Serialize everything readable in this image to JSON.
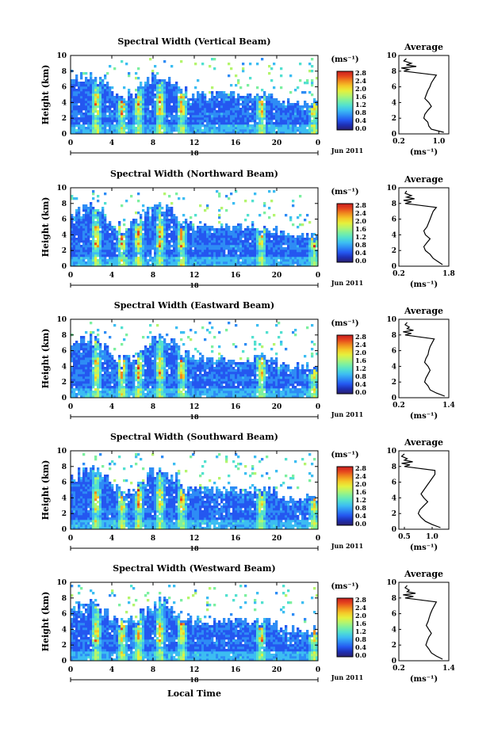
{
  "figure": {
    "xlabel": "Local Time",
    "date_label": "Jun 2011",
    "day_label": "18",
    "unit_label": "(ms⁻¹)",
    "colorbar_ticks": [
      "2.8",
      "2.4",
      "2.0",
      "1.6",
      "1.2",
      "0.8",
      "0.4",
      "0.0"
    ],
    "colorbar_colors": [
      "#2a1f6e",
      "#1e2fb4",
      "#2457f0",
      "#2e8cf5",
      "#3cbdf2",
      "#52e0d0",
      "#7cf0a0",
      "#b4f56e",
      "#e6f03c",
      "#f5c828",
      "#f08c1e",
      "#e6461e",
      "#c81e1e"
    ]
  },
  "chart_data": [
    {
      "type": "heatmap",
      "title": "Spectral Width (Vertical Beam)",
      "xlabel": "",
      "ylabel": "Height (km)",
      "xticks": [
        "0",
        "4",
        "8",
        "12",
        "16",
        "20",
        "0"
      ],
      "xlim": [
        0,
        24
      ],
      "ylim": [
        0,
        10
      ],
      "yticks": [
        "0",
        "2",
        "4",
        "6",
        "8",
        "10"
      ],
      "colorbar_range": [
        0.0,
        2.8
      ],
      "avg_profile": {
        "title": "Average",
        "xlabel": "(ms⁻¹)",
        "xticks": [
          "0.2",
          "1.0"
        ],
        "xlim": [
          0.2,
          1.2
        ],
        "y": [
          0.2,
          0.6,
          1.0,
          1.5,
          2.0,
          2.5,
          3.0,
          3.5,
          4.0,
          4.5,
          5.0,
          5.5,
          6.0,
          6.5,
          7.0,
          7.5,
          8.0,
          8.2,
          8.4,
          8.6,
          8.8,
          9.0,
          9.3,
          9.6
        ],
        "x": [
          1.1,
          0.85,
          0.8,
          0.78,
          0.7,
          0.72,
          0.78,
          0.85,
          0.8,
          0.72,
          0.75,
          0.78,
          0.82,
          0.85,
          0.9,
          0.95,
          0.3,
          0.4,
          0.25,
          0.55,
          0.35,
          0.45,
          0.3,
          0.35
        ]
      }
    },
    {
      "type": "heatmap",
      "title": "Spectral Width (Northward Beam)",
      "xlabel": "",
      "ylabel": "Height (km)",
      "xticks": [
        "0",
        "4",
        "8",
        "12",
        "16",
        "20",
        "0"
      ],
      "xlim": [
        0,
        24
      ],
      "ylim": [
        0,
        10
      ],
      "yticks": [
        "0",
        "2",
        "4",
        "6",
        "8",
        "10"
      ],
      "colorbar_range": [
        0.0,
        2.8
      ],
      "avg_profile": {
        "title": "Average",
        "xlabel": "(ms⁻¹)",
        "xticks": [
          "0.2",
          "1.8"
        ],
        "xlim": [
          0.2,
          1.8
        ],
        "y": [
          0.2,
          0.6,
          1.0,
          1.5,
          2.0,
          2.5,
          3.0,
          3.5,
          4.0,
          4.5,
          5.0,
          5.5,
          6.0,
          6.5,
          7.0,
          7.5,
          8.0,
          8.2,
          8.4,
          8.6,
          8.8,
          9.0,
          9.3,
          9.6
        ],
        "x": [
          1.6,
          1.45,
          1.3,
          1.2,
          1.05,
          1.0,
          1.1,
          1.2,
          1.05,
          1.0,
          1.1,
          1.15,
          1.2,
          1.25,
          1.3,
          1.4,
          0.4,
          0.6,
          0.35,
          0.7,
          0.45,
          0.6,
          0.4,
          0.45
        ]
      }
    },
    {
      "type": "heatmap",
      "title": "Spectral Width (Eastward Beam)",
      "xlabel": "",
      "ylabel": "Height (km)",
      "xticks": [
        "0",
        "4",
        "8",
        "12",
        "16",
        "20",
        "0"
      ],
      "xlim": [
        0,
        24
      ],
      "ylim": [
        0,
        10
      ],
      "yticks": [
        "0",
        "2",
        "4",
        "6",
        "8",
        "10"
      ],
      "colorbar_range": [
        0.0,
        2.8
      ],
      "avg_profile": {
        "title": "Average",
        "xlabel": "(ms⁻¹)",
        "xticks": [
          "0.2",
          "1.4"
        ],
        "xlim": [
          0.2,
          1.4
        ],
        "y": [
          0.2,
          0.6,
          1.0,
          1.5,
          2.0,
          2.5,
          3.0,
          3.5,
          4.0,
          4.5,
          5.0,
          5.5,
          6.0,
          6.5,
          7.0,
          7.5,
          8.0,
          8.2,
          8.4,
          8.6,
          8.8,
          9.0,
          9.3,
          9.6
        ],
        "x": [
          1.3,
          1.1,
          0.95,
          0.9,
          0.82,
          0.85,
          0.9,
          0.95,
          0.9,
          0.82,
          0.85,
          0.9,
          0.92,
          0.95,
          1.0,
          1.05,
          0.35,
          0.5,
          0.3,
          0.55,
          0.4,
          0.45,
          0.35,
          0.4
        ]
      }
    },
    {
      "type": "heatmap",
      "title": "Spectral Width (Southward Beam)",
      "xlabel": "",
      "ylabel": "Height (km)",
      "xticks": [
        "0",
        "4",
        "8",
        "12",
        "16",
        "20",
        "0"
      ],
      "xlim": [
        0,
        24
      ],
      "ylim": [
        0,
        10
      ],
      "yticks": [
        "0",
        "2",
        "4",
        "6",
        "8",
        "10"
      ],
      "colorbar_range": [
        0.0,
        2.8
      ],
      "avg_profile": {
        "title": "Average",
        "xlabel": "(ms⁻¹)",
        "xticks": [
          "0.5",
          "1.0"
        ],
        "xlim": [
          0.4,
          1.3
        ],
        "y": [
          0.2,
          0.6,
          1.0,
          1.5,
          2.0,
          2.5,
          3.0,
          3.5,
          4.0,
          4.5,
          5.0,
          5.5,
          6.0,
          6.5,
          7.0,
          7.5,
          8.0,
          8.2,
          8.4,
          8.6,
          8.8,
          9.0,
          9.3,
          9.6
        ],
        "x": [
          1.15,
          1.0,
          0.88,
          0.8,
          0.75,
          0.78,
          0.85,
          0.92,
          0.85,
          0.8,
          0.85,
          0.9,
          0.95,
          1.0,
          1.05,
          1.05,
          0.5,
          0.6,
          0.45,
          0.65,
          0.5,
          0.55,
          0.45,
          0.5
        ]
      }
    },
    {
      "type": "heatmap",
      "title": "Spectral Width (Westward Beam)",
      "xlabel": "Local Time",
      "ylabel": "Height (km)",
      "xticks": [
        "0",
        "4",
        "8",
        "12",
        "16",
        "20",
        "0"
      ],
      "xlim": [
        0,
        24
      ],
      "ylim": [
        0,
        10
      ],
      "yticks": [
        "0",
        "2",
        "4",
        "6",
        "8",
        "10"
      ],
      "colorbar_range": [
        0.0,
        2.8
      ],
      "avg_profile": {
        "title": "Average",
        "xlabel": "(ms⁻¹)",
        "xticks": [
          "0.2",
          "1.4"
        ],
        "xlim": [
          0.2,
          1.4
        ],
        "y": [
          0.2,
          0.6,
          1.0,
          1.5,
          2.0,
          2.5,
          3.0,
          3.5,
          4.0,
          4.5,
          5.0,
          5.5,
          6.0,
          6.5,
          7.0,
          7.5,
          8.0,
          8.2,
          8.4,
          8.6,
          8.8,
          9.0,
          9.3,
          9.6
        ],
        "x": [
          1.25,
          1.1,
          0.98,
          0.92,
          0.85,
          0.88,
          0.92,
          0.98,
          0.92,
          0.86,
          0.9,
          0.93,
          0.96,
          1.0,
          1.05,
          1.1,
          0.35,
          0.55,
          0.3,
          0.6,
          0.4,
          0.45,
          0.35,
          0.4
        ]
      }
    }
  ]
}
